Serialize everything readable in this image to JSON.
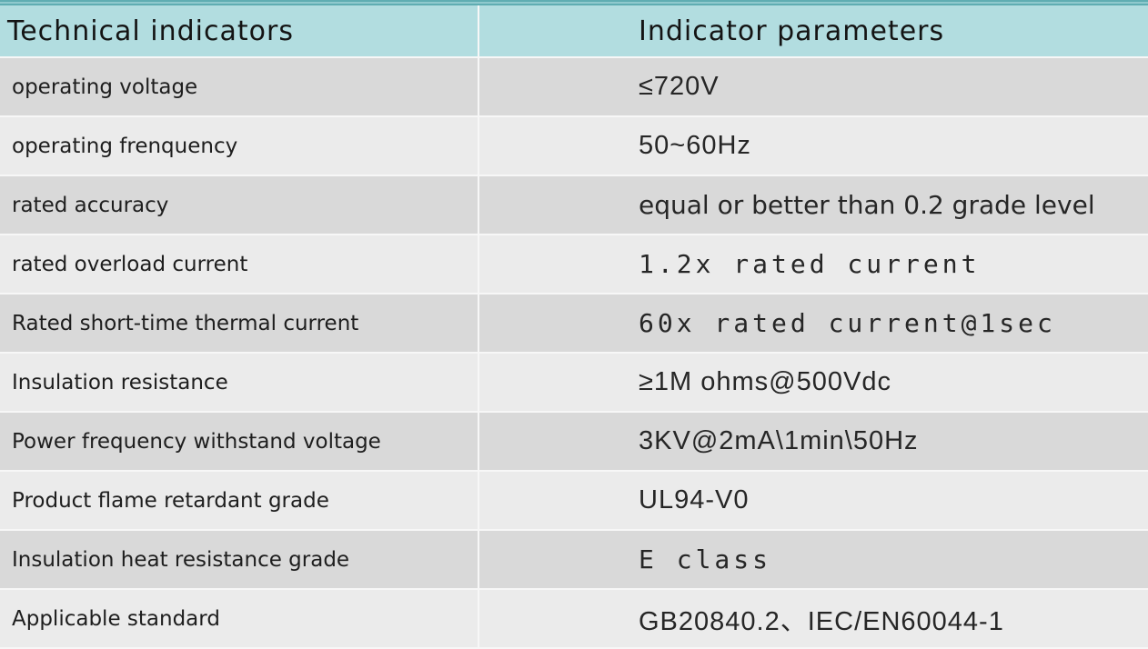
{
  "table": {
    "columns": [
      {
        "label": "Technical indicators"
      },
      {
        "label": "Indicator parameters"
      }
    ],
    "rows": [
      {
        "label": "operating voltage",
        "value": "≤720V",
        "value_font": "sans"
      },
      {
        "label": "operating frenquency",
        "value": "50~60Hz",
        "value_font": "sans"
      },
      {
        "label": "rated accuracy",
        "value": "equal or better than 0.2 grade level",
        "value_font": "humanist"
      },
      {
        "label": "rated overload current",
        "value": "1.2x rated current",
        "value_font": "mono"
      },
      {
        "label": "Rated short-time thermal current",
        "value": "60x rated current@1sec",
        "value_font": "mono"
      },
      {
        "label": "Insulation resistance",
        "value": "≥1M ohms@500Vdc",
        "value_font": "sans"
      },
      {
        "label": "Power frequency withstand voltage",
        "value": "3KV@2mA\\1min\\50Hz",
        "value_font": "sans"
      },
      {
        "label": "Product flame retardant grade",
        "value": "UL94-V0",
        "value_font": "sans"
      },
      {
        "label": "Insulation heat resistance grade",
        "value": "E class",
        "value_font": "mono"
      },
      {
        "label": "Applicable standard",
        "value": "GB20840.2、IEC/EN60044-1",
        "value_font": "sans"
      }
    ],
    "colors": {
      "top_border": "#5fadb2",
      "top_border_stripe": "#8fc9cd",
      "header_bg": "#b2dde0",
      "row_dark": "#d9d9d9",
      "row_light": "#ebebeb",
      "separator": "#f7f7f7",
      "text": "#1e1e1e"
    }
  }
}
